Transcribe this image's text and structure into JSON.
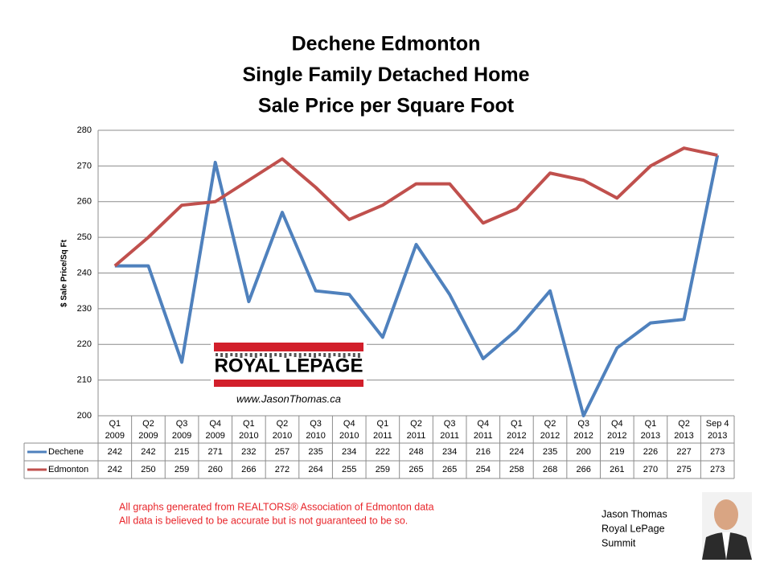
{
  "chart_data": {
    "type": "line",
    "title": [
      "Dechene Edmonton",
      "Single Family Detached Home",
      "Sale Price per Square Foot"
    ],
    "y_label": "$ Sale Price/Sq Ft",
    "categories": [
      [
        "Q1",
        "2009"
      ],
      [
        "Q2",
        "2009"
      ],
      [
        "Q3",
        "2009"
      ],
      [
        "Q4",
        "2009"
      ],
      [
        "Q1",
        "2010"
      ],
      [
        "Q2",
        "2010"
      ],
      [
        "Q3",
        "2010"
      ],
      [
        "Q4",
        "2010"
      ],
      [
        "Q1",
        "2011"
      ],
      [
        "Q2",
        "2011"
      ],
      [
        "Q3",
        "2011"
      ],
      [
        "Q4",
        "2011"
      ],
      [
        "Q1",
        "2012"
      ],
      [
        "Q2",
        "2012"
      ],
      [
        "Q3",
        "2012"
      ],
      [
        "Q4",
        "2012"
      ],
      [
        "Q1",
        "2013"
      ],
      [
        "Q2",
        "2013"
      ],
      [
        "Sep 4",
        "2013"
      ]
    ],
    "series": [
      {
        "name": "Dechene",
        "color": "#4f81bd",
        "values": [
          242,
          242,
          215,
          271,
          232,
          257,
          235,
          234,
          222,
          248,
          234,
          216,
          224,
          235,
          200,
          219,
          226,
          227,
          273
        ]
      },
      {
        "name": "Edmonton",
        "color": "#c0504d",
        "values": [
          242,
          250,
          259,
          260,
          266,
          272,
          264,
          255,
          259,
          265,
          265,
          254,
          258,
          268,
          266,
          261,
          270,
          275,
          273
        ]
      }
    ],
    "ylim": [
      200,
      280
    ],
    "yticks": [
      200,
      210,
      220,
      230,
      240,
      250,
      260,
      270,
      280
    ],
    "grid": true,
    "logo": {
      "brand": "ROYAL LEPAGE",
      "url": "www.JasonThomas.ca"
    },
    "notes": [
      "All graphs generated from REALTORS® Association of Edmonton data",
      "All data is believed to be accurate but is not guaranteed to be so."
    ],
    "signature": [
      "Jason Thomas",
      "Royal LePage",
      "Summit"
    ]
  }
}
